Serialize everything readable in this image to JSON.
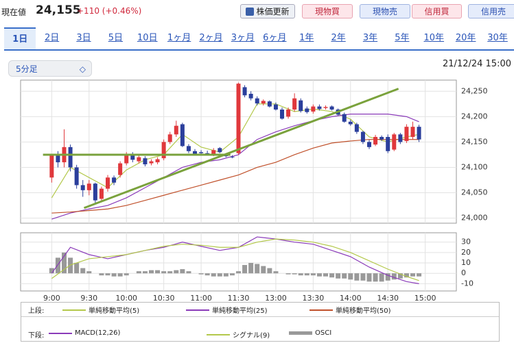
{
  "header": {
    "price_label": "現在値",
    "price": "24,155",
    "change": "+110 (+0.46%)",
    "buttons": [
      "株価更新",
      "現物買",
      "現物売",
      "信用買",
      "信用売"
    ]
  },
  "tabs": {
    "items": [
      "1日",
      "2日",
      "3日",
      "5日",
      "10日",
      "1ヶ月",
      "2ヶ月",
      "3ヶ月",
      "6ヶ月",
      "1年",
      "2年",
      "3年",
      "5年",
      "10年",
      "20年",
      "30年"
    ],
    "selected": 0
  },
  "interval": "5分足",
  "timestamp": "21/12/24 15:00",
  "legend": {
    "upper": "上段:",
    "lower": "下段:"
  },
  "chart_data": [
    {
      "type": "candlestick",
      "up_color": "#e0383c",
      "down_color": "#2b3f9c",
      "candles": [
        [
          24080,
          24125,
          24070,
          24125
        ],
        [
          24125,
          24132,
          24100,
          24110
        ],
        [
          24110,
          24175,
          24100,
          24140
        ],
        [
          24140,
          24145,
          24092,
          24100
        ],
        [
          24100,
          24105,
          24058,
          24065
        ],
        [
          24065,
          24075,
          24042,
          24055
        ],
        [
          24055,
          24075,
          24045,
          24068
        ],
        [
          24068,
          24070,
          24030,
          24035
        ],
        [
          24038,
          24062,
          24032,
          24058
        ],
        [
          24058,
          24085,
          24052,
          24080
        ],
        [
          24080,
          24084,
          24065,
          24070
        ],
        [
          24085,
          24112,
          24080,
          24108
        ],
        [
          24108,
          24130,
          24104,
          24125
        ],
        [
          24125,
          24130,
          24110,
          24115
        ],
        [
          24112,
          24125,
          24108,
          24120
        ],
        [
          24118,
          24122,
          24102,
          24106
        ],
        [
          24108,
          24116,
          24104,
          24112
        ],
        [
          24110,
          24120,
          24106,
          24116
        ],
        [
          24118,
          24155,
          24114,
          24150
        ],
        [
          24150,
          24170,
          24146,
          24165
        ],
        [
          24165,
          24192,
          24160,
          24182
        ],
        [
          24185,
          24188,
          24140,
          24142
        ],
        [
          24142,
          24146,
          24128,
          24132
        ],
        [
          24132,
          24136,
          24124,
          24127
        ],
        [
          24130,
          24134,
          24126,
          24128
        ],
        [
          24128,
          24133,
          24124,
          24126
        ],
        [
          24126,
          24138,
          24122,
          24134
        ],
        [
          24138,
          24140,
          24128,
          24130
        ],
        [
          24124,
          24126,
          24120,
          24122
        ],
        [
          24121,
          24124,
          24118,
          24120
        ],
        [
          24128,
          24267,
          24125,
          24265
        ],
        [
          24258,
          24262,
          24238,
          24242
        ],
        [
          24245,
          24250,
          24232,
          24236
        ],
        [
          24236,
          24240,
          24222,
          24226
        ],
        [
          24226,
          24234,
          24222,
          24231
        ],
        [
          24230,
          24232,
          24218,
          24220
        ],
        [
          24224,
          24228,
          24212,
          24214
        ],
        [
          24214,
          24218,
          24194,
          24196
        ],
        [
          24200,
          24218,
          24196,
          24214
        ],
        [
          24214,
          24246,
          24210,
          24236
        ],
        [
          24232,
          24236,
          24208,
          24211
        ],
        [
          24216,
          24220,
          24206,
          24209
        ],
        [
          24210,
          24224,
          24206,
          24220
        ],
        [
          24220,
          24224,
          24212,
          24215
        ],
        [
          24217,
          24222,
          24214,
          24219
        ],
        [
          24220,
          24222,
          24212,
          24214
        ],
        [
          24214,
          24216,
          24202,
          24204
        ],
        [
          24205,
          24208,
          24188,
          24190
        ],
        [
          24190,
          24194,
          24182,
          24185
        ],
        [
          24185,
          24188,
          24166,
          24170
        ],
        [
          24170,
          24172,
          24146,
          24150
        ],
        [
          24150,
          24154,
          24136,
          24140
        ],
        [
          24145,
          24164,
          24142,
          24160
        ],
        [
          24160,
          24163,
          24152,
          24155
        ],
        [
          24160,
          24165,
          24128,
          24132
        ],
        [
          24135,
          24168,
          24132,
          24165
        ],
        [
          24165,
          24168,
          24146,
          24150
        ],
        [
          24152,
          24185,
          24148,
          24180
        ],
        [
          24160,
          24190,
          24155,
          24180
        ],
        [
          24180,
          24184,
          24150,
          24155
        ]
      ],
      "overlays": [
        {
          "name": "単純移動平均(5)",
          "color": "#b3c84a",
          "x": [
            0,
            3,
            6,
            9,
            12,
            15,
            18,
            21,
            24,
            27,
            30,
            33,
            36,
            39,
            42,
            45,
            48,
            51,
            54,
            57,
            59
          ],
          "values": [
            24040,
            24100,
            24080,
            24060,
            24095,
            24115,
            24125,
            24165,
            24140,
            24130,
            24160,
            24225,
            24225,
            24210,
            24215,
            24210,
            24195,
            24160,
            24150,
            24160,
            24165
          ]
        },
        {
          "name": "単純移動平均(25)",
          "color": "#8a3ab9",
          "x": [
            0,
            3,
            6,
            9,
            12,
            15,
            18,
            21,
            24,
            27,
            30,
            33,
            36,
            39,
            42,
            45,
            48,
            51,
            54,
            57,
            59
          ],
          "values": [
            23998,
            24010,
            24018,
            24025,
            24040,
            24060,
            24080,
            24100,
            24110,
            24115,
            24125,
            24155,
            24170,
            24182,
            24192,
            24200,
            24205,
            24205,
            24205,
            24200,
            24190
          ]
        },
        {
          "name": "単純移動平均(50)",
          "color": "#c0502a",
          "x": [
            0,
            3,
            6,
            9,
            12,
            15,
            18,
            21,
            24,
            27,
            30,
            33,
            36,
            39,
            42,
            45,
            48,
            51,
            54,
            57,
            59
          ],
          "values": [
            24010,
            24012,
            24015,
            24018,
            24025,
            24035,
            24045,
            24055,
            24065,
            24075,
            24085,
            24100,
            24110,
            24125,
            24138,
            24148,
            24152,
            24155,
            24155,
            24155,
            24155
          ]
        }
      ],
      "trendlines": [
        {
          "color": "#7aa23c",
          "x": [
            -1.4,
            28.7
          ],
          "values": [
            24125,
            24125
          ]
        },
        {
          "color": "#7aa23c",
          "x": [
            5.2,
            55.7
          ],
          "values": [
            24020,
            24255
          ]
        }
      ],
      "xlim": [
        -5,
        65
      ],
      "ylim": [
        23990,
        24272
      ],
      "yticks": [
        {
          "value": 24000,
          "label": "24,000"
        },
        {
          "value": 24050,
          "label": "24,050"
        },
        {
          "value": 24100,
          "label": "24,100"
        },
        {
          "value": 24150,
          "label": "24,150"
        },
        {
          "value": 24200,
          "label": "24,200"
        },
        {
          "value": 24250,
          "label": "24,250"
        }
      ],
      "xticks": [
        {
          "value": 0,
          "label": "9:00"
        },
        {
          "value": 6,
          "label": "9:30"
        },
        {
          "value": 12,
          "label": "10:00"
        },
        {
          "value": 18,
          "label": "10:30"
        },
        {
          "value": 24,
          "label": "11:00"
        },
        {
          "value": 30,
          "label": "11:30"
        },
        {
          "value": 36,
          "label": "13:00"
        },
        {
          "value": 42,
          "label": "13:30"
        },
        {
          "value": 48,
          "label": "14:00"
        },
        {
          "value": 54,
          "label": "14:30"
        },
        {
          "value": 60,
          "label": "15:00"
        }
      ],
      "grid": true
    },
    {
      "type": "macd",
      "series": [
        {
          "name": "MACD(12,26)",
          "color": "#8a3ab9",
          "x": [
            0,
            3,
            6,
            9,
            12,
            15,
            18,
            21,
            24,
            27,
            30,
            33,
            36,
            39,
            42,
            45,
            48,
            51,
            54,
            57,
            59
          ],
          "values": [
            0,
            25,
            18,
            14,
            18,
            22,
            25,
            30,
            26,
            22,
            25,
            35,
            33,
            30,
            28,
            22,
            16,
            6,
            -2,
            -8,
            -10
          ]
        },
        {
          "name": "シグナル(9)",
          "color": "#b3c84a",
          "x": [
            0,
            3,
            6,
            9,
            12,
            15,
            18,
            21,
            24,
            27,
            30,
            33,
            36,
            39,
            42,
            45,
            48,
            51,
            54,
            57,
            59
          ],
          "values": [
            -5,
            8,
            14,
            16,
            18,
            22,
            26,
            28,
            27,
            25,
            25,
            30,
            33,
            32,
            30,
            26,
            20,
            12,
            4,
            -3,
            -7
          ]
        }
      ],
      "bars": {
        "name": "OSCI",
        "color": "#999999",
        "values": [
          5,
          15,
          20,
          15,
          10,
          5,
          2,
          0,
          -2,
          -2,
          -3,
          -3,
          -2,
          0,
          2,
          2,
          3,
          3,
          2,
          2,
          3,
          4,
          2,
          0,
          -1,
          -2,
          -3,
          -3,
          -3,
          -2,
          2,
          8,
          10,
          9,
          7,
          5,
          2,
          0,
          -1,
          -1,
          -2,
          -2,
          -2,
          -3,
          -3,
          -4,
          -5,
          -5,
          -6,
          -7,
          -7,
          -8,
          -8,
          -8,
          -7,
          -6,
          -5,
          -4,
          -3,
          -3
        ]
      },
      "xlim": [
        -5,
        65
      ],
      "ylim": [
        -17,
        39
      ],
      "yticks": [
        -10,
        0,
        10,
        20,
        30
      ],
      "grid": true
    }
  ]
}
